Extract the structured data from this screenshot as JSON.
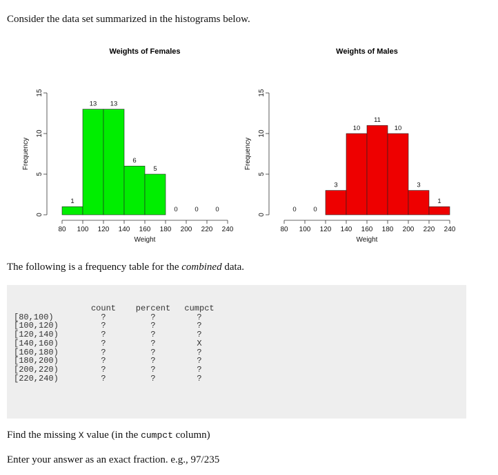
{
  "intro": "Consider the data set summarized in the histograms below.",
  "chart_data": [
    {
      "type": "bar",
      "title": "Weights of Females",
      "xlabel": "Weight",
      "ylabel": "Frequency",
      "bins": [
        [
          80,
          100
        ],
        [
          100,
          120
        ],
        [
          120,
          140
        ],
        [
          140,
          160
        ],
        [
          160,
          180
        ],
        [
          180,
          200
        ],
        [
          200,
          220
        ],
        [
          220,
          240
        ]
      ],
      "values": [
        1,
        13,
        13,
        6,
        5,
        0,
        0,
        0
      ],
      "color": "#00ee00",
      "xticks": [
        80,
        100,
        120,
        140,
        160,
        180,
        200,
        220,
        240
      ],
      "yticks": [
        0,
        5,
        10,
        15
      ],
      "ylim": [
        0,
        15
      ],
      "grid": false
    },
    {
      "type": "bar",
      "title": "Weights of Males",
      "xlabel": "Weight",
      "ylabel": "Frequency",
      "bins": [
        [
          80,
          100
        ],
        [
          100,
          120
        ],
        [
          120,
          140
        ],
        [
          140,
          160
        ],
        [
          160,
          180
        ],
        [
          180,
          200
        ],
        [
          200,
          220
        ],
        [
          220,
          240
        ]
      ],
      "values": [
        0,
        0,
        3,
        10,
        11,
        10,
        3,
        1
      ],
      "color": "#ee0000",
      "xticks": [
        80,
        100,
        120,
        140,
        160,
        180,
        200,
        220,
        240
      ],
      "yticks": [
        0,
        5,
        10,
        15
      ],
      "ylim": [
        0,
        15
      ],
      "grid": false
    }
  ],
  "middle_text": {
    "before": "The following is a frequency table for the ",
    "emph": "combined",
    "after": " data."
  },
  "table": {
    "headers": [
      "count",
      "percent",
      "cumpct"
    ],
    "rows": [
      {
        "label": "[80,100)",
        "count": "?",
        "percent": "?",
        "cumpct": "?"
      },
      {
        "label": "[100,120)",
        "count": "?",
        "percent": "?",
        "cumpct": "?"
      },
      {
        "label": "[120,140)",
        "count": "?",
        "percent": "?",
        "cumpct": "?"
      },
      {
        "label": "[140,160)",
        "count": "?",
        "percent": "?",
        "cumpct": "X"
      },
      {
        "label": "[160,180)",
        "count": "?",
        "percent": "?",
        "cumpct": "?"
      },
      {
        "label": "[180,200)",
        "count": "?",
        "percent": "?",
        "cumpct": "?"
      },
      {
        "label": "[200,220)",
        "count": "?",
        "percent": "?",
        "cumpct": "?"
      },
      {
        "label": "[220,240)",
        "count": "?",
        "percent": "?",
        "cumpct": "?"
      }
    ]
  },
  "question": {
    "before": "Find the missing ",
    "var": "X",
    "mid": " value (in the ",
    "col": "cumpct",
    "after": " column)"
  },
  "instruction": "Enter your answer as an exact fraction. e.g., 97/235"
}
